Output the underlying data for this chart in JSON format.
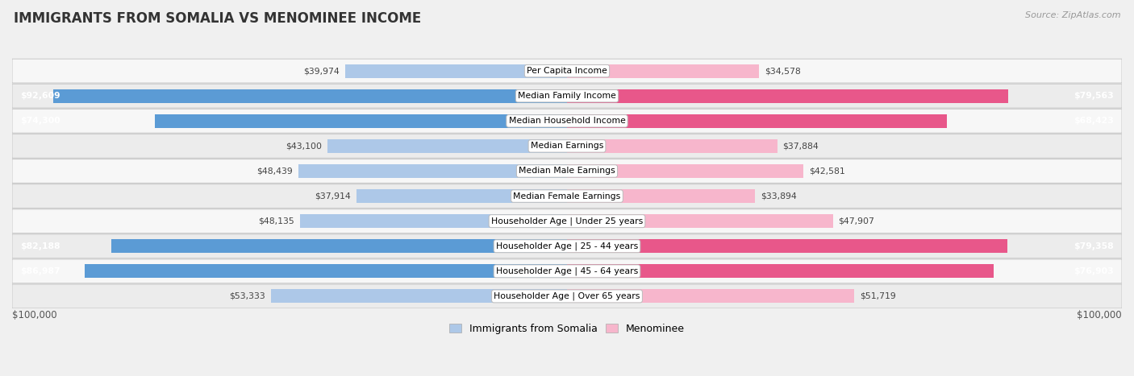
{
  "title": "IMMIGRANTS FROM SOMALIA VS MENOMINEE INCOME",
  "source": "Source: ZipAtlas.com",
  "categories": [
    "Per Capita Income",
    "Median Family Income",
    "Median Household Income",
    "Median Earnings",
    "Median Male Earnings",
    "Median Female Earnings",
    "Householder Age | Under 25 years",
    "Householder Age | 25 - 44 years",
    "Householder Age | 45 - 64 years",
    "Householder Age | Over 65 years"
  ],
  "somalia_values": [
    39974,
    92609,
    74300,
    43100,
    48439,
    37914,
    48135,
    82188,
    86987,
    53333
  ],
  "menominee_values": [
    34578,
    79563,
    68423,
    37884,
    42581,
    33894,
    47907,
    79358,
    76903,
    51719
  ],
  "somalia_labels": [
    "$39,974",
    "$92,609",
    "$74,300",
    "$43,100",
    "$48,439",
    "$37,914",
    "$48,135",
    "$82,188",
    "$86,987",
    "$53,333"
  ],
  "menominee_labels": [
    "$34,578",
    "$79,563",
    "$68,423",
    "$37,884",
    "$42,581",
    "$33,894",
    "$47,907",
    "$79,358",
    "$76,903",
    "$51,719"
  ],
  "somalia_color_light": "#adc8e8",
  "somalia_color_dark": "#5b9bd5",
  "menominee_color_light": "#f7b6cc",
  "menominee_color_dark": "#e8578a",
  "somalia_threshold": 55000,
  "menominee_threshold": 55000,
  "max_value": 100000,
  "background_color": "#f0f0f0",
  "row_colors": [
    "#f7f7f7",
    "#ececec"
  ],
  "legend_somalia": "Immigrants from Somalia",
  "legend_menominee": "Menominee"
}
